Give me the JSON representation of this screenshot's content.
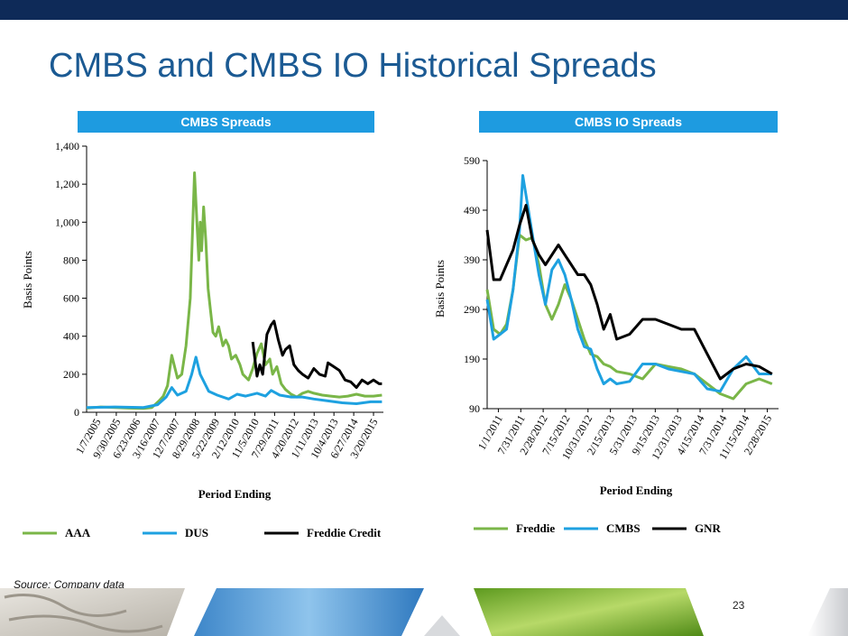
{
  "title": "CMBS and CMBS IO Historical Spreads",
  "source": "Source: Company data",
  "page_number": "23",
  "colors": {
    "top_bar": "#0e2a58",
    "title": "#1b5a93",
    "header": "#1e9be0",
    "green": "#7ab648",
    "blue": "#1ea1e0",
    "black": "#000000"
  },
  "chart_data": [
    {
      "type": "line",
      "header": "CMBS Spreads",
      "xlabel": "Period Ending",
      "ylabel": "Basis Points",
      "ylim": [
        0,
        1400
      ],
      "yticks": [
        "0",
        "200",
        "400",
        "600",
        "800",
        "1,000",
        "1,200",
        "1,400"
      ],
      "ytick_values": [
        0,
        200,
        400,
        600,
        800,
        1000,
        1200,
        1400
      ],
      "xticks": [
        "1/7/2005",
        "9/30/2005",
        "6/23/2006",
        "3/16/2007",
        "12/7/2007",
        "8/29/2008",
        "5/22/2009",
        "2/12/2010",
        "11/5/2010",
        "7/29/2011",
        "4/20/2012",
        "1/11/2013",
        "10/4/2013",
        "6/27/2014",
        "3/20/2015"
      ],
      "series": [
        {
          "name": "AAA",
          "color": "#7ab648",
          "x": [
            2005.0,
            2005.5,
            2006.0,
            2006.5,
            2007.0,
            2007.3,
            2007.55,
            2007.7,
            2007.85,
            2008.0,
            2008.2,
            2008.35,
            2008.5,
            2008.65,
            2008.8,
            2008.9,
            2008.95,
            2009.0,
            2009.05,
            2009.12,
            2009.2,
            2009.28,
            2009.35,
            2009.45,
            2009.55,
            2009.65,
            2009.8,
            2009.9,
            2010.0,
            2010.1,
            2010.25,
            2010.4,
            2010.5,
            2010.7,
            2010.85,
            2011.0,
            2011.15,
            2011.3,
            2011.45,
            2011.55,
            2011.7,
            2011.85,
            2012.0,
            2012.2,
            2012.4,
            2012.6,
            2012.8,
            2013.0,
            2013.3,
            2013.6,
            2013.9,
            2014.2,
            2014.5,
            2014.8,
            2015.1,
            2015.4
          ],
          "y": [
            22,
            28,
            25,
            22,
            20,
            25,
            60,
            85,
            140,
            300,
            180,
            200,
            350,
            600,
            1260,
            950,
            800,
            1000,
            850,
            1080,
            900,
            650,
            550,
            420,
            400,
            450,
            350,
            380,
            350,
            280,
            300,
            250,
            200,
            170,
            230,
            310,
            360,
            250,
            280,
            200,
            240,
            150,
            120,
            95,
            80,
            100,
            110,
            100,
            90,
            85,
            80,
            85,
            95,
            85,
            85,
            90
          ]
        },
        {
          "name": "DUS",
          "color": "#1ea1e0",
          "x": [
            2005.0,
            2006.0,
            2007.0,
            2007.5,
            2007.8,
            2008.0,
            2008.2,
            2008.5,
            2008.7,
            2008.85,
            2009.0,
            2009.3,
            2009.6,
            2010.0,
            2010.3,
            2010.6,
            2011.0,
            2011.3,
            2011.5,
            2011.8,
            2012.2,
            2012.6,
            2013.0,
            2013.5,
            2014.0,
            2014.5,
            2015.0,
            2015.4
          ],
          "y": [
            25,
            28,
            25,
            40,
            80,
            130,
            90,
            110,
            200,
            290,
            200,
            110,
            90,
            70,
            95,
            85,
            100,
            85,
            115,
            90,
            80,
            80,
            70,
            60,
            50,
            45,
            55,
            55
          ]
        },
        {
          "name": "Freddie Credit",
          "color": "#000000",
          "x": [
            2010.85,
            2011.0,
            2011.1,
            2011.2,
            2011.35,
            2011.5,
            2011.6,
            2011.75,
            2011.9,
            2012.0,
            2012.15,
            2012.3,
            2012.45,
            2012.6,
            2012.8,
            2013.0,
            2013.2,
            2013.4,
            2013.5,
            2013.7,
            2013.9,
            2014.1,
            2014.3,
            2014.5,
            2014.7,
            2014.9,
            2015.1,
            2015.3,
            2015.4
          ],
          "y": [
            370,
            190,
            250,
            200,
            410,
            460,
            480,
            380,
            300,
            330,
            350,
            250,
            220,
            200,
            180,
            230,
            200,
            190,
            260,
            240,
            220,
            170,
            160,
            130,
            170,
            150,
            170,
            150,
            150
          ]
        }
      ]
    },
    {
      "type": "line",
      "header": "CMBS IO Spreads",
      "xlabel": "Period Ending",
      "ylabel": "Basis Points",
      "ylim": [
        90,
        590
      ],
      "yticks": [
        "90",
        "190",
        "290",
        "390",
        "490",
        "590"
      ],
      "ytick_values": [
        90,
        190,
        290,
        390,
        490,
        590
      ],
      "xticks": [
        "1/1/2011",
        "7/31/2011",
        "2/28/2012",
        "7/15/2012",
        "10/31/2012",
        "2/15/2013",
        "5/31/2013",
        "9/15/2013",
        "12/31/2013",
        "4/15/2014",
        "7/31/2014",
        "11/15/2014",
        "2/28/2015"
      ],
      "series": [
        {
          "name": "Freddie",
          "color": "#7ab648",
          "x": [
            2011.0,
            2011.1,
            2011.2,
            2011.3,
            2011.4,
            2011.5,
            2011.6,
            2011.7,
            2011.8,
            2011.9,
            2012.0,
            2012.1,
            2012.2,
            2012.3,
            2012.4,
            2012.5,
            2012.6,
            2012.7,
            2012.8,
            2012.9,
            2013.0,
            2013.2,
            2013.4,
            2013.6,
            2013.8,
            2014.0,
            2014.2,
            2014.4,
            2014.6,
            2014.8,
            2015.0,
            2015.2,
            2015.4
          ],
          "y": [
            330,
            250,
            240,
            260,
            330,
            440,
            430,
            435,
            380,
            300,
            270,
            300,
            340,
            310,
            270,
            230,
            200,
            195,
            180,
            175,
            165,
            160,
            150,
            180,
            175,
            170,
            160,
            140,
            120,
            110,
            140,
            150,
            140
          ]
        },
        {
          "name": "CMBS",
          "color": "#1ea1e0",
          "x": [
            2011.0,
            2011.1,
            2011.2,
            2011.3,
            2011.4,
            2011.5,
            2011.55,
            2011.6,
            2011.7,
            2011.8,
            2011.9,
            2012.0,
            2012.1,
            2012.2,
            2012.3,
            2012.4,
            2012.5,
            2012.6,
            2012.7,
            2012.8,
            2012.9,
            2013.0,
            2013.2,
            2013.4,
            2013.6,
            2013.8,
            2014.0,
            2014.2,
            2014.4,
            2014.6,
            2014.8,
            2015.0,
            2015.2,
            2015.4
          ],
          "y": [
            310,
            230,
            240,
            250,
            330,
            450,
            560,
            520,
            440,
            360,
            300,
            370,
            390,
            360,
            310,
            250,
            215,
            210,
            170,
            140,
            150,
            140,
            145,
            180,
            180,
            170,
            165,
            160,
            130,
            125,
            170,
            195,
            160,
            160
          ]
        },
        {
          "name": "GNR",
          "color": "#000000",
          "x": [
            2011.0,
            2011.1,
            2011.2,
            2011.3,
            2011.4,
            2011.5,
            2011.6,
            2011.7,
            2011.8,
            2011.9,
            2012.0,
            2012.1,
            2012.2,
            2012.3,
            2012.4,
            2012.5,
            2012.6,
            2012.7,
            2012.8,
            2012.9,
            2013.0,
            2013.2,
            2013.4,
            2013.6,
            2013.8,
            2014.0,
            2014.2,
            2014.4,
            2014.6,
            2014.8,
            2015.0,
            2015.2,
            2015.4
          ],
          "y": [
            450,
            350,
            350,
            380,
            410,
            460,
            500,
            430,
            400,
            380,
            400,
            420,
            400,
            380,
            360,
            360,
            340,
            300,
            250,
            280,
            230,
            240,
            270,
            270,
            260,
            250,
            250,
            200,
            150,
            170,
            180,
            175,
            160
          ]
        }
      ]
    }
  ]
}
